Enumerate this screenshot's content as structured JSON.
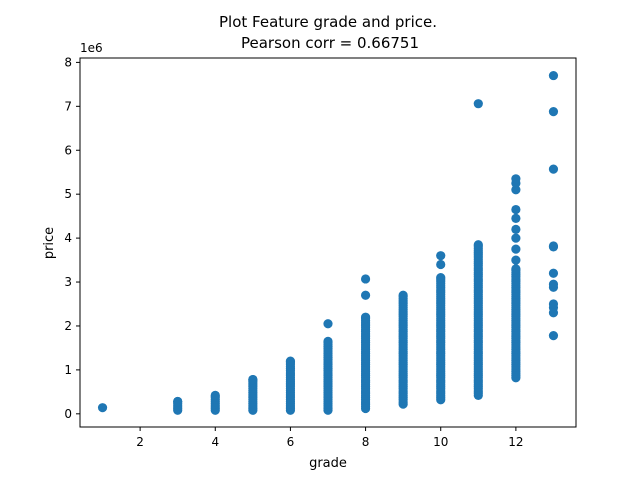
{
  "chart_data": {
    "type": "scatter",
    "title_line1": "Plot Feature grade and price.",
    "title_line2": "Pearson corr = 0.66751",
    "xlabel": "grade",
    "ylabel": "price",
    "offset_text": "1e6",
    "xlim": [
      0.4,
      13.6
    ],
    "ylim": [
      -0.3,
      8.1
    ],
    "x_ticks": [
      2,
      4,
      6,
      8,
      10,
      12
    ],
    "y_ticks": [
      0,
      1,
      2,
      3,
      4,
      5,
      6,
      7,
      8
    ],
    "y_multiplier": 1000000,
    "marker_color": "#1f77b4",
    "columns": [
      {
        "x": 1,
        "min": 0.14,
        "max": 0.14,
        "extra": []
      },
      {
        "x": 3,
        "min": 0.08,
        "max": 0.28,
        "extra": []
      },
      {
        "x": 4,
        "min": 0.08,
        "max": 0.42,
        "extra": []
      },
      {
        "x": 5,
        "min": 0.08,
        "max": 0.78,
        "extra": []
      },
      {
        "x": 6,
        "min": 0.08,
        "max": 1.2,
        "extra": []
      },
      {
        "x": 7,
        "min": 0.08,
        "max": 1.65,
        "extra": [
          2.05
        ]
      },
      {
        "x": 8,
        "min": 0.12,
        "max": 2.2,
        "extra": [
          2.7,
          3.07
        ]
      },
      {
        "x": 9,
        "min": 0.22,
        "max": 2.7,
        "extra": []
      },
      {
        "x": 10,
        "min": 0.32,
        "max": 3.1,
        "extra": [
          3.4,
          3.6
        ]
      },
      {
        "x": 11,
        "min": 0.42,
        "max": 3.85,
        "extra": [
          7.06
        ]
      },
      {
        "x": 12,
        "min": 0.82,
        "max": 3.3,
        "extra": [
          3.5,
          3.75,
          4.0,
          4.2,
          4.45,
          4.65,
          5.1,
          5.25,
          5.35
        ]
      },
      {
        "x": 13,
        "min": 1.78,
        "max": 1.78,
        "extra": [
          2.3,
          2.42,
          2.5,
          2.88,
          2.95,
          3.2,
          3.8,
          3.82,
          5.57,
          6.88,
          7.7
        ]
      }
    ]
  }
}
